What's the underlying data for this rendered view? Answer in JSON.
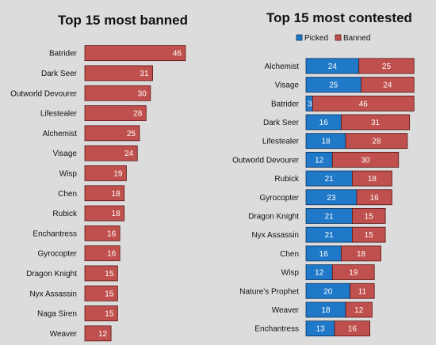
{
  "colors": {
    "background": "#dcdcdc",
    "banned": "#c0504d",
    "picked": "#1f78c8"
  },
  "chart_data": [
    {
      "type": "bar",
      "orientation": "horizontal",
      "title": "Top 15 most banned",
      "categories": [
        "Batrider",
        "Dark Seer",
        "Outworld Devourer",
        "Lifestealer",
        "Alchemist",
        "Visage",
        "Wisp",
        "Chen",
        "Rubick",
        "Enchantress",
        "Gyrocopter",
        "Dragon Knight",
        "Nyx Assassin",
        "Naga Siren",
        "Weaver"
      ],
      "values": [
        46,
        31,
        30,
        28,
        25,
        24,
        19,
        18,
        18,
        16,
        16,
        15,
        15,
        15,
        12
      ],
      "grid": false,
      "legend": null
    },
    {
      "type": "bar",
      "orientation": "horizontal",
      "stacked": true,
      "title": "Top 15 most contested",
      "categories": [
        "Alchemist",
        "Visage",
        "Batrider",
        "Dark Seer",
        "Lifestealer",
        "Outworld Devourer",
        "Rubick",
        "Gyrocopter",
        "Dragon Knight",
        "Nyx Assassin",
        "Chen",
        "Wisp",
        "Nature's Prophet",
        "Weaver",
        "Enchantress"
      ],
      "series": [
        {
          "name": "Picked",
          "values": [
            24,
            25,
            3,
            16,
            18,
            12,
            21,
            23,
            21,
            21,
            16,
            12,
            20,
            18,
            13
          ]
        },
        {
          "name": "Banned",
          "values": [
            25,
            24,
            46,
            31,
            28,
            30,
            18,
            16,
            15,
            15,
            18,
            19,
            11,
            12,
            16
          ]
        }
      ],
      "grid": false,
      "legend": "top"
    }
  ]
}
